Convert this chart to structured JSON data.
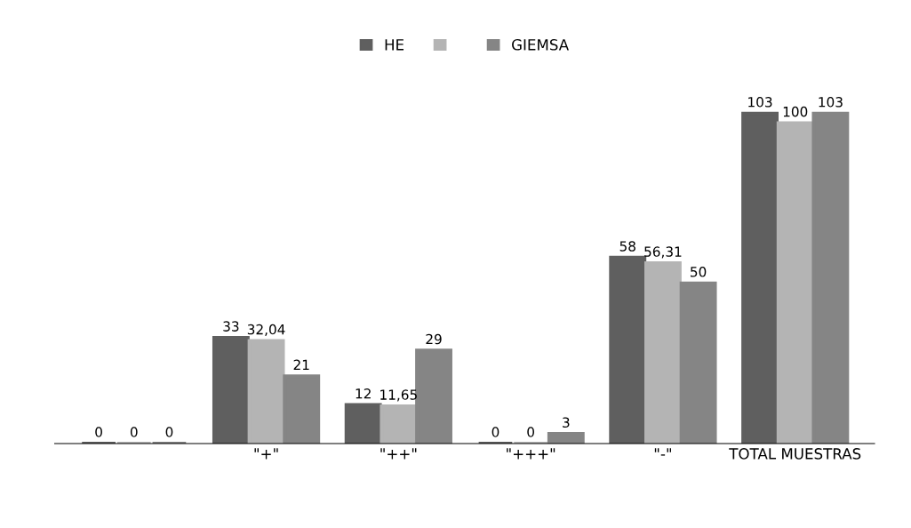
{
  "chart_data": {
    "type": "bar",
    "categories": [
      null,
      "\"+\"",
      "\"++\"",
      "\"+++\"",
      "\"-\"",
      "TOTAL MUESTRAS"
    ],
    "series": [
      {
        "name": "HE",
        "color": "#5f5f5f",
        "values": [
          0,
          33,
          12,
          0,
          58,
          103
        ],
        "value_labels": [
          "0",
          "33",
          "12",
          "0",
          "58",
          "103"
        ]
      },
      {
        "color": "#b4b4b4",
        "values": [
          0,
          32.04,
          11.65,
          0,
          56.31,
          100
        ],
        "value_labels": [
          "0",
          "32,04",
          "11,65",
          "0",
          "56,31",
          "100"
        ]
      },
      {
        "name": "GIEMSA",
        "color": "#858585",
        "values": [
          0,
          21,
          29,
          3,
          50,
          103
        ],
        "value_labels": [
          "0",
          "21",
          "29",
          "3",
          "50",
          "103"
        ]
      }
    ],
    "tick_labels": "x",
    "legend": "top",
    "grid": false
  }
}
